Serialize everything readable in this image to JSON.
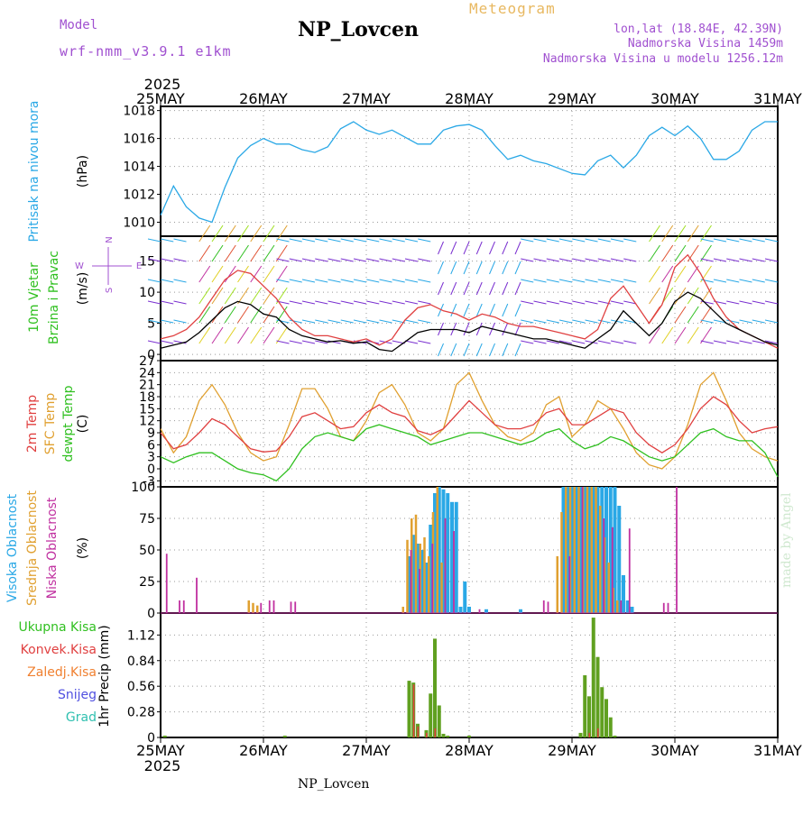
{
  "header": {
    "title": "NP_Lovcen",
    "meteogram": "Meteogram",
    "model_label": "Model",
    "model_name": "wrf-nmm_v3.9.1 e1km",
    "lonlat": "lon,lat (18.84E, 42.39N)",
    "altitude": "Nadmorska Visina 1459m",
    "altitude_model": "Nadmorska Visina u modelu 1256.12m"
  },
  "footer": {
    "station": "NP_Lovcen",
    "made_by": "made by Angel"
  },
  "time_axis": {
    "year": "2025",
    "labels": [
      "25MAY",
      "26MAY",
      "27MAY",
      "28MAY",
      "29MAY",
      "30MAY",
      "31MAY"
    ]
  },
  "colors": {
    "pressure": "#2aa8e6",
    "wind_speed": "#000000",
    "wind_gust": "#e04040",
    "temp_2m": "#e04040",
    "temp_sfc": "#e0a030",
    "temp_dewpt": "#30c020",
    "cloud_high": "#2aa8e6",
    "cloud_mid": "#e0a030",
    "cloud_low": "#c030a0",
    "precip_total": "#60a020",
    "precip_conv": "#e04040"
  },
  "chart_data": [
    {
      "type": "line",
      "panel": "pressure",
      "ylabel_left": "Pritisak na nivou mora",
      "ylabel_unit": "(hPa)",
      "y_ticks": [
        1010,
        1012,
        1014,
        1016,
        1018
      ],
      "ylim": [
        1009,
        1018.3
      ],
      "x_unit": "hours since 25MAY 00",
      "series": [
        {
          "key": "pressure",
          "x": [
            0,
            3,
            6,
            9,
            12,
            15,
            18,
            21,
            24,
            27,
            30,
            33,
            36,
            39,
            42,
            45,
            48,
            51,
            54,
            57,
            60,
            63,
            66,
            69,
            72,
            75,
            78,
            81,
            84,
            87,
            90,
            96,
            99,
            102,
            105,
            108,
            111,
            114,
            117,
            120,
            123,
            126,
            129,
            132,
            135,
            138,
            141,
            144
          ],
          "values": [
            1010.5,
            1012.6,
            1011.1,
            1010.3,
            1010.0,
            1012.5,
            1014.6,
            1015.5,
            1016.0,
            1015.6,
            1015.6,
            1015.2,
            1015.0,
            1015.4,
            1016.7,
            1017.2,
            1016.6,
            1016.3,
            1016.6,
            1016.1,
            1015.6,
            1015.6,
            1016.6,
            1016.9,
            1017.0,
            1016.6,
            1015.5,
            1014.5,
            1014.8,
            1014.4,
            1014.2,
            1013.5,
            1013.4,
            1014.4,
            1014.8,
            1013.9,
            1014.8,
            1016.2,
            1016.8,
            1016.2,
            1016.9,
            1016.0,
            1014.5,
            1014.5,
            1015.1,
            1016.6,
            1017.2,
            1017.2
          ]
        }
      ]
    },
    {
      "type": "line",
      "panel": "wind",
      "ylabel_left": "10m Vjetar Brzina i Pravac",
      "ylabel_unit": "(m/s)",
      "compass": {
        "n": "N",
        "w": "W",
        "e": "E",
        "s": "S"
      },
      "y_ticks": [
        0,
        5,
        10,
        15
      ],
      "ylim": [
        -1,
        19
      ],
      "x_unit": "hours since 25MAY 00",
      "series": [
        {
          "key": "speed",
          "x": [
            0,
            3,
            6,
            9,
            12,
            15,
            18,
            21,
            24,
            27,
            30,
            33,
            36,
            39,
            42,
            45,
            48,
            51,
            54,
            57,
            60,
            63,
            66,
            69,
            72,
            75,
            78,
            81,
            84,
            87,
            90,
            93,
            96,
            99,
            102,
            105,
            108,
            111,
            114,
            117,
            120,
            123,
            126,
            129,
            132,
            135,
            138,
            141,
            144
          ],
          "values": [
            1.0,
            1.5,
            2.0,
            3.5,
            5.5,
            7.5,
            8.5,
            8.0,
            6.5,
            6.0,
            4.0,
            3.0,
            2.5,
            2.0,
            2.2,
            1.8,
            2.0,
            0.8,
            0.5,
            2.0,
            3.5,
            4.0,
            4.0,
            4.0,
            3.5,
            4.5,
            4.0,
            3.5,
            3.0,
            2.5,
            2.5,
            2.0,
            1.5,
            1.0,
            2.5,
            4.0,
            7.0,
            5.0,
            3.0,
            5.0,
            8.5,
            10.0,
            9.0,
            7.0,
            5.0,
            4.0,
            3.0,
            2.0,
            1.5
          ]
        },
        {
          "key": "gust",
          "x": [
            0,
            3,
            6,
            9,
            12,
            15,
            18,
            21,
            24,
            27,
            30,
            33,
            36,
            39,
            42,
            45,
            48,
            51,
            54,
            57,
            60,
            63,
            66,
            69,
            72,
            75,
            78,
            81,
            84,
            87,
            90,
            93,
            96,
            99,
            102,
            105,
            108,
            111,
            114,
            117,
            120,
            123,
            126,
            129,
            132,
            135,
            138,
            141,
            144
          ],
          "values": [
            2.5,
            3.0,
            4.0,
            6.0,
            9.0,
            12.0,
            13.5,
            13.0,
            11.0,
            9.0,
            6.0,
            4.0,
            3.0,
            3.0,
            2.5,
            2.0,
            2.5,
            1.5,
            2.5,
            5.5,
            7.5,
            8.0,
            7.0,
            6.5,
            5.5,
            6.5,
            6.0,
            5.0,
            4.5,
            4.5,
            4.0,
            3.5,
            3.0,
            2.5,
            4.0,
            9.0,
            11.0,
            8.0,
            5.0,
            8.0,
            14.0,
            16.0,
            13.0,
            9.0,
            6.0,
            4.0,
            3.0,
            2.0,
            1.0
          ]
        }
      ]
    },
    {
      "type": "line",
      "panel": "temperature",
      "ylabel_left": [
        "2m Temp",
        "SFC Temp",
        "dewpt Temp"
      ],
      "ylabel_unit": "(C)",
      "y_ticks": [
        -3,
        0,
        3,
        6,
        9,
        12,
        15,
        18,
        21,
        24,
        27
      ],
      "ylim": [
        -4.5,
        27
      ],
      "x_unit": "hours since 25MAY 00",
      "series": [
        {
          "key": "temp_2m",
          "x": [
            0,
            3,
            6,
            9,
            12,
            15,
            18,
            21,
            24,
            27,
            30,
            33,
            36,
            39,
            42,
            45,
            48,
            51,
            54,
            57,
            60,
            63,
            66,
            69,
            72,
            75,
            78,
            81,
            84,
            87,
            90,
            93,
            96,
            99,
            102,
            105,
            108,
            111,
            114,
            117,
            120,
            123,
            126,
            129,
            132,
            135,
            138,
            141,
            144
          ],
          "values": [
            9,
            5,
            6,
            9,
            12.5,
            11,
            8,
            5,
            4.2,
            4.5,
            8,
            13,
            14,
            12,
            10,
            10.5,
            14,
            16,
            14,
            13,
            9.5,
            8.5,
            10,
            13.5,
            17,
            14,
            11,
            10,
            10,
            11,
            14,
            15,
            11,
            11,
            13,
            15,
            14,
            9,
            6,
            4,
            6,
            10,
            15,
            18,
            16,
            12,
            9,
            10,
            10.5
          ]
        },
        {
          "key": "temp_sfc",
          "x": [
            0,
            3,
            6,
            9,
            12,
            15,
            18,
            21,
            24,
            27,
            30,
            33,
            36,
            39,
            42,
            45,
            48,
            51,
            54,
            57,
            60,
            63,
            66,
            69,
            72,
            75,
            78,
            81,
            84,
            87,
            90,
            93,
            96,
            99,
            102,
            105,
            108,
            111,
            114,
            117,
            120,
            123,
            126,
            129,
            132,
            135,
            138,
            141,
            144
          ],
          "values": [
            10,
            4,
            8,
            17,
            21,
            16,
            9,
            4,
            2,
            3,
            11,
            20,
            20,
            15,
            8,
            7,
            12,
            19,
            21,
            16,
            9,
            7,
            10,
            21,
            24,
            17,
            11,
            8,
            7,
            9,
            16,
            18,
            8,
            11,
            17,
            15,
            10,
            4,
            1,
            0,
            3,
            11,
            21,
            24,
            17,
            9,
            5,
            3,
            2
          ]
        },
        {
          "key": "dewpt",
          "x": [
            0,
            3,
            6,
            9,
            12,
            15,
            18,
            21,
            24,
            27,
            30,
            33,
            36,
            39,
            42,
            45,
            48,
            51,
            54,
            57,
            60,
            63,
            66,
            69,
            72,
            75,
            78,
            81,
            84,
            87,
            90,
            93,
            96,
            99,
            102,
            105,
            108,
            111,
            114,
            117,
            120,
            123,
            126,
            129,
            132,
            135,
            138,
            141,
            144
          ],
          "values": [
            3,
            1.5,
            3,
            4,
            4,
            2,
            0,
            -1,
            -1.5,
            -3,
            0,
            5,
            8,
            9,
            8,
            7,
            10,
            11,
            10,
            9,
            8,
            6,
            7,
            8,
            9,
            9,
            8,
            7,
            6,
            7,
            9,
            10,
            7,
            5,
            6,
            8,
            7,
            5,
            3,
            2,
            3,
            6,
            9,
            10,
            8,
            7,
            7,
            4,
            -2
          ]
        }
      ]
    },
    {
      "type": "bar",
      "panel": "cloud_cover",
      "ylabel_left": [
        "Visoka Oblacnost",
        "Srednja Oblacnost",
        "Niska Oblacnost"
      ],
      "ylabel_unit": "(%)",
      "y_ticks": [
        0,
        25,
        50,
        75,
        100
      ],
      "ylim": [
        0,
        100
      ],
      "x_unit": "hours since 25MAY 00",
      "series": [
        {
          "key": "high",
          "x": [
            58,
            59,
            60,
            61,
            62,
            63,
            64,
            65,
            66,
            67,
            68,
            69,
            70,
            71,
            72,
            76,
            84,
            94,
            95,
            96,
            97,
            98,
            99,
            100,
            101,
            102,
            103,
            104,
            105,
            106,
            107,
            108,
            109,
            110
          ],
          "values": [
            45,
            62,
            55,
            50,
            40,
            70,
            95,
            100,
            98,
            95,
            88,
            88,
            5,
            25,
            5,
            3,
            3,
            100,
            100,
            100,
            100,
            100,
            100,
            100,
            100,
            100,
            100,
            100,
            100,
            100,
            85,
            30,
            10,
            5
          ]
        },
        {
          "key": "mid",
          "x": [
            21,
            22,
            23,
            57,
            58,
            59,
            60,
            61,
            62,
            63,
            64,
            65,
            66,
            93,
            94,
            95,
            96,
            97,
            98,
            99,
            100,
            101,
            102,
            103,
            104,
            105,
            106,
            107
          ],
          "values": [
            10,
            8,
            6,
            5,
            58,
            75,
            78,
            55,
            60,
            45,
            80,
            100,
            40,
            45,
            80,
            100,
            100,
            100,
            100,
            100,
            100,
            100,
            100,
            85,
            60,
            40,
            20,
            10
          ]
        },
        {
          "key": "low",
          "x": [
            1,
            4,
            5,
            8,
            23,
            25,
            26,
            30,
            31,
            58,
            60,
            63,
            66,
            68,
            74,
            89,
            90,
            95,
            98,
            103,
            105,
            107,
            109,
            117,
            118,
            120
          ],
          "values": [
            47,
            10,
            10,
            28,
            8,
            10,
            10,
            9,
            9,
            50,
            35,
            55,
            75,
            65,
            3,
            10,
            9,
            45,
            100,
            75,
            68,
            10,
            67,
            8,
            8,
            100
          ]
        }
      ]
    },
    {
      "type": "bar",
      "panel": "precipitation",
      "ylabel_left": [
        "Ukupna Kisa",
        "Konvek.Kisa",
        "Zaledj.Kisa",
        "Snijeg",
        "Grad"
      ],
      "ylabel_unit": "1hr Precip (mm)",
      "y_ticks": [
        0,
        0.28,
        0.56,
        0.84,
        1.12
      ],
      "ylim": [
        0,
        1.36
      ],
      "x_unit": "hours since 25MAY 00",
      "series": [
        {
          "key": "total",
          "x": [
            1,
            29,
            58,
            59,
            60,
            62,
            63,
            64,
            65,
            66,
            67,
            72,
            98,
            99,
            100,
            101,
            102,
            103,
            104,
            105,
            106
          ],
          "values": [
            0.02,
            0.02,
            0.62,
            0.6,
            0.15,
            0.08,
            0.48,
            1.08,
            0.35,
            0.04,
            0.02,
            0.02,
            0.05,
            0.68,
            0.45,
            1.31,
            0.88,
            0.55,
            0.42,
            0.22,
            0.02
          ]
        },
        {
          "key": "convective",
          "x": [
            59,
            60,
            62,
            64,
            100,
            102
          ],
          "values": [
            0.58,
            0.12,
            0.05,
            0.1,
            0.05,
            0.1
          ]
        }
      ]
    }
  ]
}
